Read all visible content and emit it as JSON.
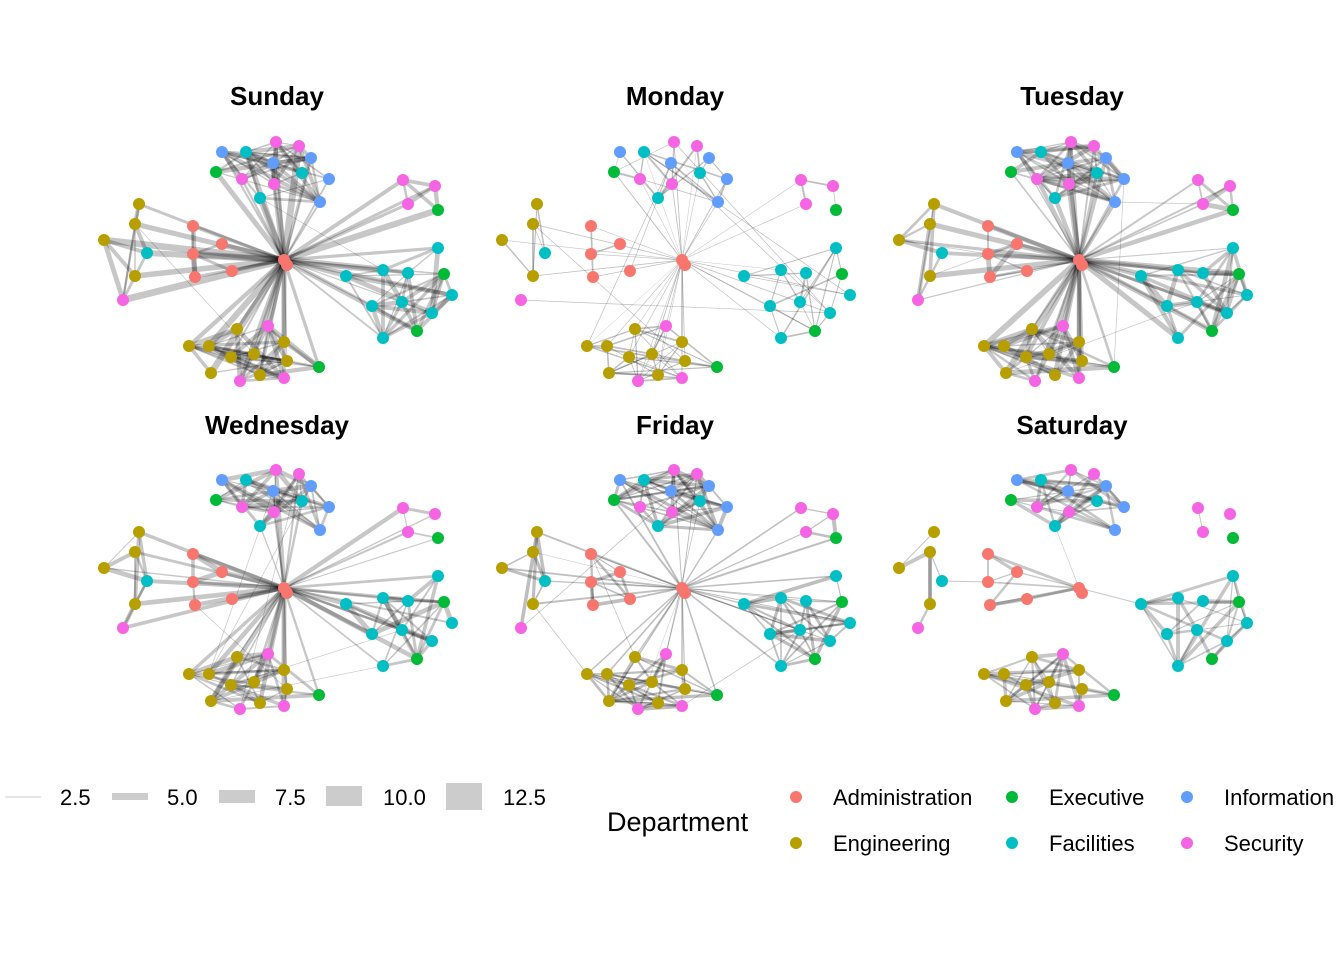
{
  "facets": [
    {
      "title": "Sunday"
    },
    {
      "title": "Monday"
    },
    {
      "title": "Tuesday"
    },
    {
      "title": "Wednesday"
    },
    {
      "title": "Friday"
    },
    {
      "title": "Saturday"
    }
  ],
  "legend": {
    "width_legend": {
      "entries": [
        {
          "label": "2.5",
          "value": 2.5
        },
        {
          "label": "5.0",
          "value": 5.0
        },
        {
          "label": "7.5",
          "value": 7.5
        },
        {
          "label": "10.0",
          "value": 10.0
        },
        {
          "label": "12.5",
          "value": 12.5
        }
      ],
      "color": "#cccccc"
    },
    "color_legend": {
      "title": "Department",
      "entries": [
        {
          "label": "Administration",
          "color": "#F8766D"
        },
        {
          "label": "Engineering",
          "color": "#B79F00"
        },
        {
          "label": "Executive",
          "color": "#00BA38"
        },
        {
          "label": "Facilities",
          "color": "#00BFC4"
        },
        {
          "label": "Information",
          "color": "#619CFF"
        },
        {
          "label": "Security",
          "color": "#F564E3"
        }
      ]
    }
  },
  "nodes": [
    "Security",
    "Security",
    "Information",
    "Facilities",
    "Information",
    "Information",
    "Executive",
    "Facilities",
    "Security",
    "Information",
    "Security",
    "Facilities",
    "Information",
    "Security",
    "Security",
    "Security",
    "Executive",
    "Engineering",
    "Engineering",
    "Engineering",
    "Facilities",
    "Engineering",
    "Security",
    "Administration",
    "Administration",
    "Administration",
    "Administration",
    "Administration",
    "Facilities",
    "Facilities",
    "Facilities",
    "Executive",
    "Facilities",
    "Facilities",
    "Facilities",
    "Facilities",
    "Facilities",
    "Executive",
    "Facilities",
    "Security",
    "Engineering",
    "Engineering",
    "Engineering",
    "Engineering",
    "Engineering",
    "Engineering",
    "Engineering",
    "Executive",
    "Engineering",
    "Engineering",
    "Security",
    "Security",
    "Administration",
    "Administration"
  ]
}
